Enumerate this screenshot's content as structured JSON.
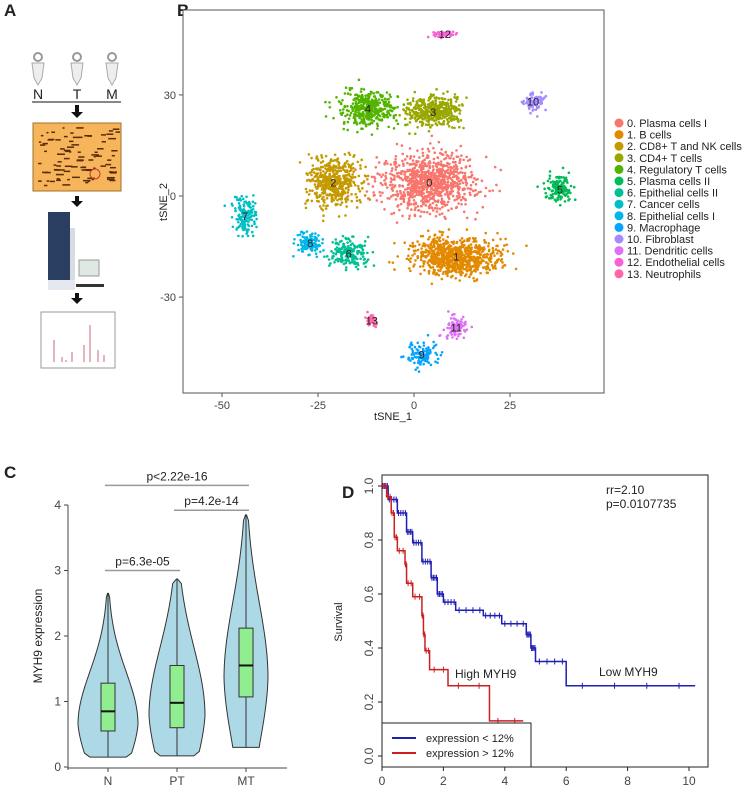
{
  "panels": {
    "a": "A",
    "b": "B",
    "c": "C",
    "d": "D"
  },
  "workflow": {
    "samples": [
      "N",
      "T",
      "M"
    ]
  },
  "chart_data": [
    {
      "type": "scatter",
      "panel": "B",
      "xlabel": "tSNE_1",
      "ylabel": "tSNE_2",
      "xticks": [
        -50,
        -25,
        0,
        25
      ],
      "yticks": [
        30,
        0,
        -30
      ],
      "xlim": [
        -60,
        48
      ],
      "ylim": [
        -55,
        55
      ],
      "legend": "right",
      "clusters": [
        {
          "id": "0",
          "name": "0. Plasma cells I",
          "color": "#F8766D",
          "center": [
            4,
            4
          ],
          "spread": [
            11,
            8
          ],
          "n": 900
        },
        {
          "id": "1",
          "name": "1. B cells",
          "color": "#E38900",
          "center": [
            11,
            -18
          ],
          "spread": [
            10,
            5
          ],
          "n": 800
        },
        {
          "id": "2",
          "name": "2. CD8+ T and NK cells",
          "color": "#C49A00",
          "center": [
            -21,
            4
          ],
          "spread": [
            6,
            6.5
          ],
          "n": 500
        },
        {
          "id": "3",
          "name": "3. CD4+ T cells",
          "color": "#99A800",
          "center": [
            5,
            25
          ],
          "spread": [
            7,
            4
          ],
          "n": 400
        },
        {
          "id": "4",
          "name": "4. Regulatory T cells",
          "color": "#53B400",
          "center": [
            -12,
            26
          ],
          "spread": [
            6,
            4.5
          ],
          "n": 400
        },
        {
          "id": "5",
          "name": "5. Plasma cells II",
          "color": "#00BC56",
          "center": [
            38,
            2
          ],
          "spread": [
            3,
            4
          ],
          "n": 150
        },
        {
          "id": "6",
          "name": "6. Epithelial cells II",
          "color": "#00C094",
          "center": [
            -17,
            -17
          ],
          "spread": [
            5,
            4
          ],
          "n": 180
        },
        {
          "id": "7",
          "name": "7. Cancer cells",
          "color": "#00BFC4",
          "center": [
            -44,
            -6
          ],
          "spread": [
            2.5,
            5
          ],
          "n": 140
        },
        {
          "id": "8",
          "name": "8. Epithelial cells I",
          "color": "#00B6EB",
          "center": [
            -27,
            -14
          ],
          "spread": [
            3,
            3
          ],
          "n": 120
        },
        {
          "id": "9",
          "name": "9. Macrophage",
          "color": "#06A4FF",
          "center": [
            2,
            -47
          ],
          "spread": [
            3.5,
            3.5
          ],
          "n": 110
        },
        {
          "id": "10",
          "name": "10. Fibroblast",
          "color": "#A58AFF",
          "center": [
            31,
            28
          ],
          "spread": [
            2.5,
            2.5
          ],
          "n": 80
        },
        {
          "id": "11",
          "name": "11. Dendritic cells",
          "color": "#DF70F8",
          "center": [
            11,
            -39
          ],
          "spread": [
            2.5,
            3
          ],
          "n": 90
        },
        {
          "id": "12",
          "name": "12. Endothelial cells",
          "color": "#FB61D7",
          "center": [
            8,
            48
          ],
          "spread": [
            2.5,
            0.8
          ],
          "n": 50
        },
        {
          "id": "13",
          "name": "13. Neutrophils",
          "color": "#FF66A8",
          "center": [
            -11,
            -37
          ],
          "spread": [
            1.5,
            1.5
          ],
          "n": 40
        }
      ]
    },
    {
      "type": "violin",
      "panel": "C",
      "ylabel": "MYH9 expression",
      "categories": [
        "N",
        "PT",
        "MT"
      ],
      "yticks": [
        0,
        1,
        2,
        3,
        4
      ],
      "ylim": [
        0,
        4
      ],
      "box": [
        {
          "min": 0.15,
          "q1": 0.55,
          "median": 0.85,
          "q3": 1.28,
          "max": 2.65
        },
        {
          "min": 0.17,
          "q1": 0.6,
          "median": 0.98,
          "q3": 1.55,
          "max": 2.87
        },
        {
          "min": 0.3,
          "q1": 1.07,
          "median": 1.55,
          "q3": 2.12,
          "max": 3.85
        }
      ],
      "comparisons": [
        {
          "from": "N",
          "to": "PT",
          "label": "p=6.3e-05",
          "y": 3.0
        },
        {
          "from": "PT",
          "to": "MT",
          "label": "p=4.2e-14",
          "y": 3.92
        },
        {
          "from": "N",
          "to": "MT",
          "label": "p<2.22e-16",
          "y": 4.3
        }
      ],
      "violin_color": "#ADD8E6",
      "box_color": "#90EE90"
    },
    {
      "type": "line",
      "panel": "D",
      "ylabel": "Survival",
      "xticks": [
        0,
        2,
        4,
        6,
        8,
        10
      ],
      "yticks": [
        0.0,
        0.2,
        0.4,
        0.6,
        0.8,
        1.0
      ],
      "xlim": [
        0,
        10.5
      ],
      "ylim": [
        -0.04,
        1.04
      ],
      "annotation": [
        "rr=2.10",
        "p=0.0107735"
      ],
      "series": [
        {
          "name": "expression < 12%",
          "label": "Low MYH9",
          "color": "#1f1fb4",
          "steps": [
            [
              0,
              1
            ],
            [
              0.2,
              0.95
            ],
            [
              0.5,
              0.9
            ],
            [
              0.8,
              0.83
            ],
            [
              1,
              0.79
            ],
            [
              1.3,
              0.72
            ],
            [
              1.6,
              0.66
            ],
            [
              1.8,
              0.6
            ],
            [
              2,
              0.57
            ],
            [
              2.4,
              0.54
            ],
            [
              3.3,
              0.52
            ],
            [
              3.9,
              0.49
            ],
            [
              4.7,
              0.45
            ],
            [
              4.85,
              0.4
            ],
            [
              5,
              0.35
            ],
            [
              6,
              0.26
            ],
            [
              10.2,
              0.26
            ]
          ]
        },
        {
          "name": "expression > 12%",
          "label": "High MYH9",
          "color": "#cc2020",
          "steps": [
            [
              0,
              1
            ],
            [
              0.15,
              0.96
            ],
            [
              0.3,
              0.9
            ],
            [
              0.4,
              0.81
            ],
            [
              0.5,
              0.76
            ],
            [
              0.75,
              0.71
            ],
            [
              0.8,
              0.64
            ],
            [
              1,
              0.59
            ],
            [
              1.3,
              0.52
            ],
            [
              1.35,
              0.45
            ],
            [
              1.4,
              0.39
            ],
            [
              1.55,
              0.32
            ],
            [
              2.15,
              0.26
            ],
            [
              3.5,
              0.13
            ],
            [
              4.6,
              0.13
            ]
          ]
        }
      ]
    }
  ]
}
